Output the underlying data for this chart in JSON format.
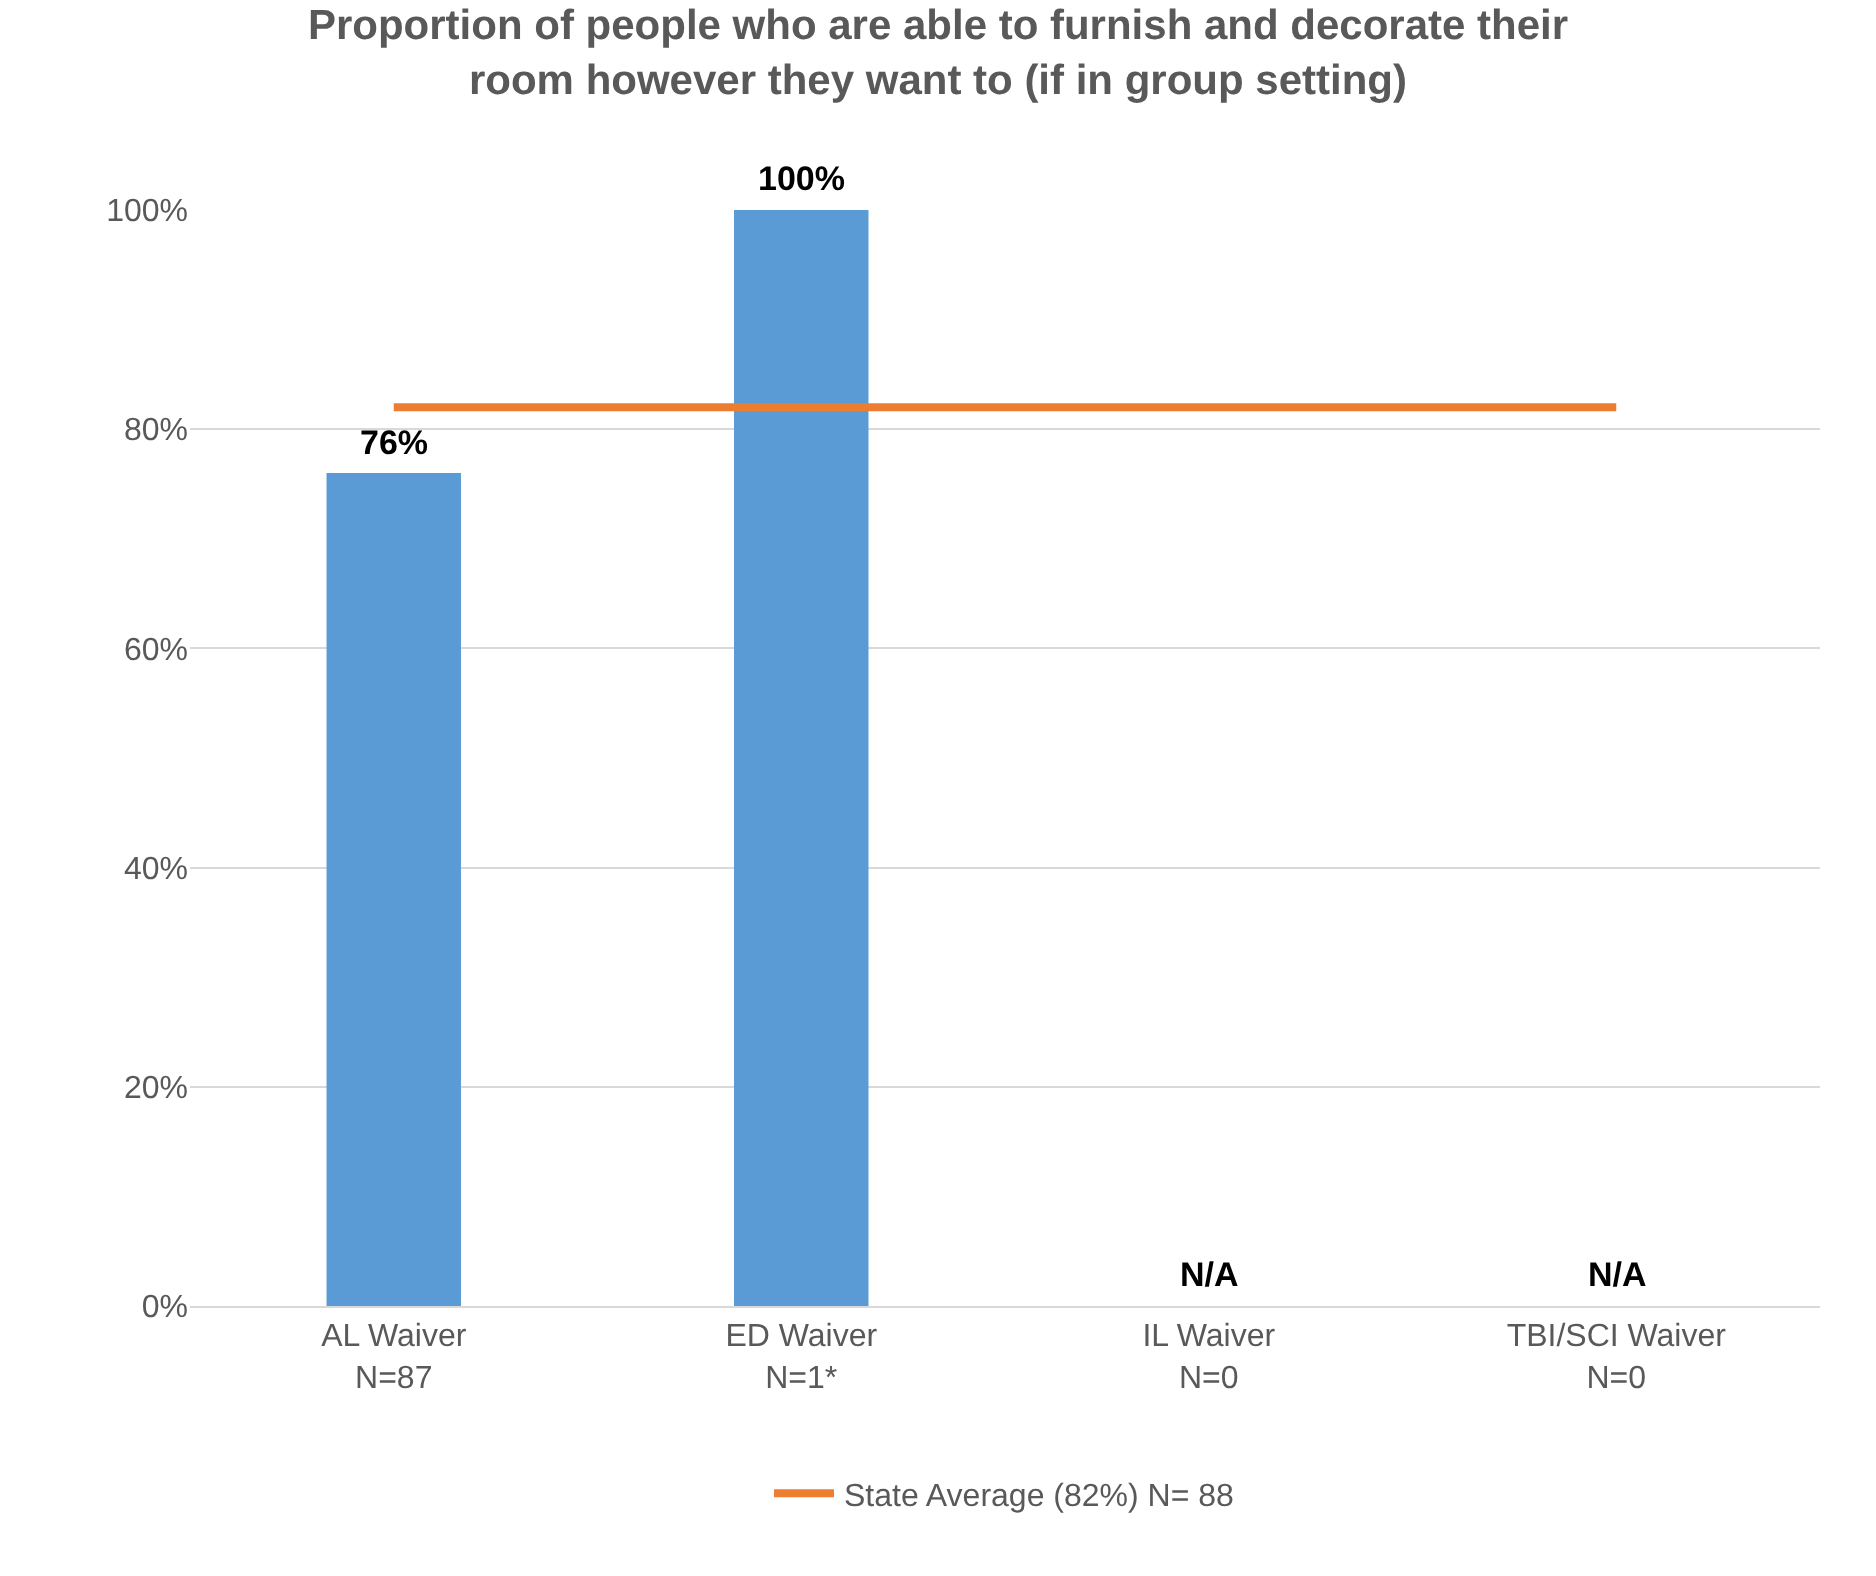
{
  "chart_data": {
    "type": "bar",
    "title": "Proportion of people who are able to furnish and decorate their\nroom however they want to (if in group setting)",
    "categories": [
      "AL Waiver\nN=87",
      "ED Waiver\nN=1*",
      "IL Waiver\nN=0",
      "TBI/SCI Waiver\nN=0"
    ],
    "series": [
      {
        "color": "#5b9bd5",
        "values": [
          76,
          100,
          null,
          null
        ],
        "value_labels": [
          "76%",
          "100%",
          "N/A",
          "N/A"
        ]
      },
      {
        "type": "line",
        "name": "State Average (82%) N= 88",
        "color": "#ed7d31",
        "values": [
          82,
          82,
          82,
          82
        ]
      }
    ],
    "ylim": [
      0,
      100
    ],
    "yticks": [
      {
        "value": 0,
        "label": "0%"
      },
      {
        "value": 20,
        "label": "20%"
      },
      {
        "value": 40,
        "label": "40%"
      },
      {
        "value": 60,
        "label": "60%"
      },
      {
        "value": 80,
        "label": "80%"
      },
      {
        "value": 100,
        "label": "100%"
      }
    ],
    "grid": "y",
    "legend": "bottom",
    "marker": "none",
    "line_style": "solid"
  }
}
